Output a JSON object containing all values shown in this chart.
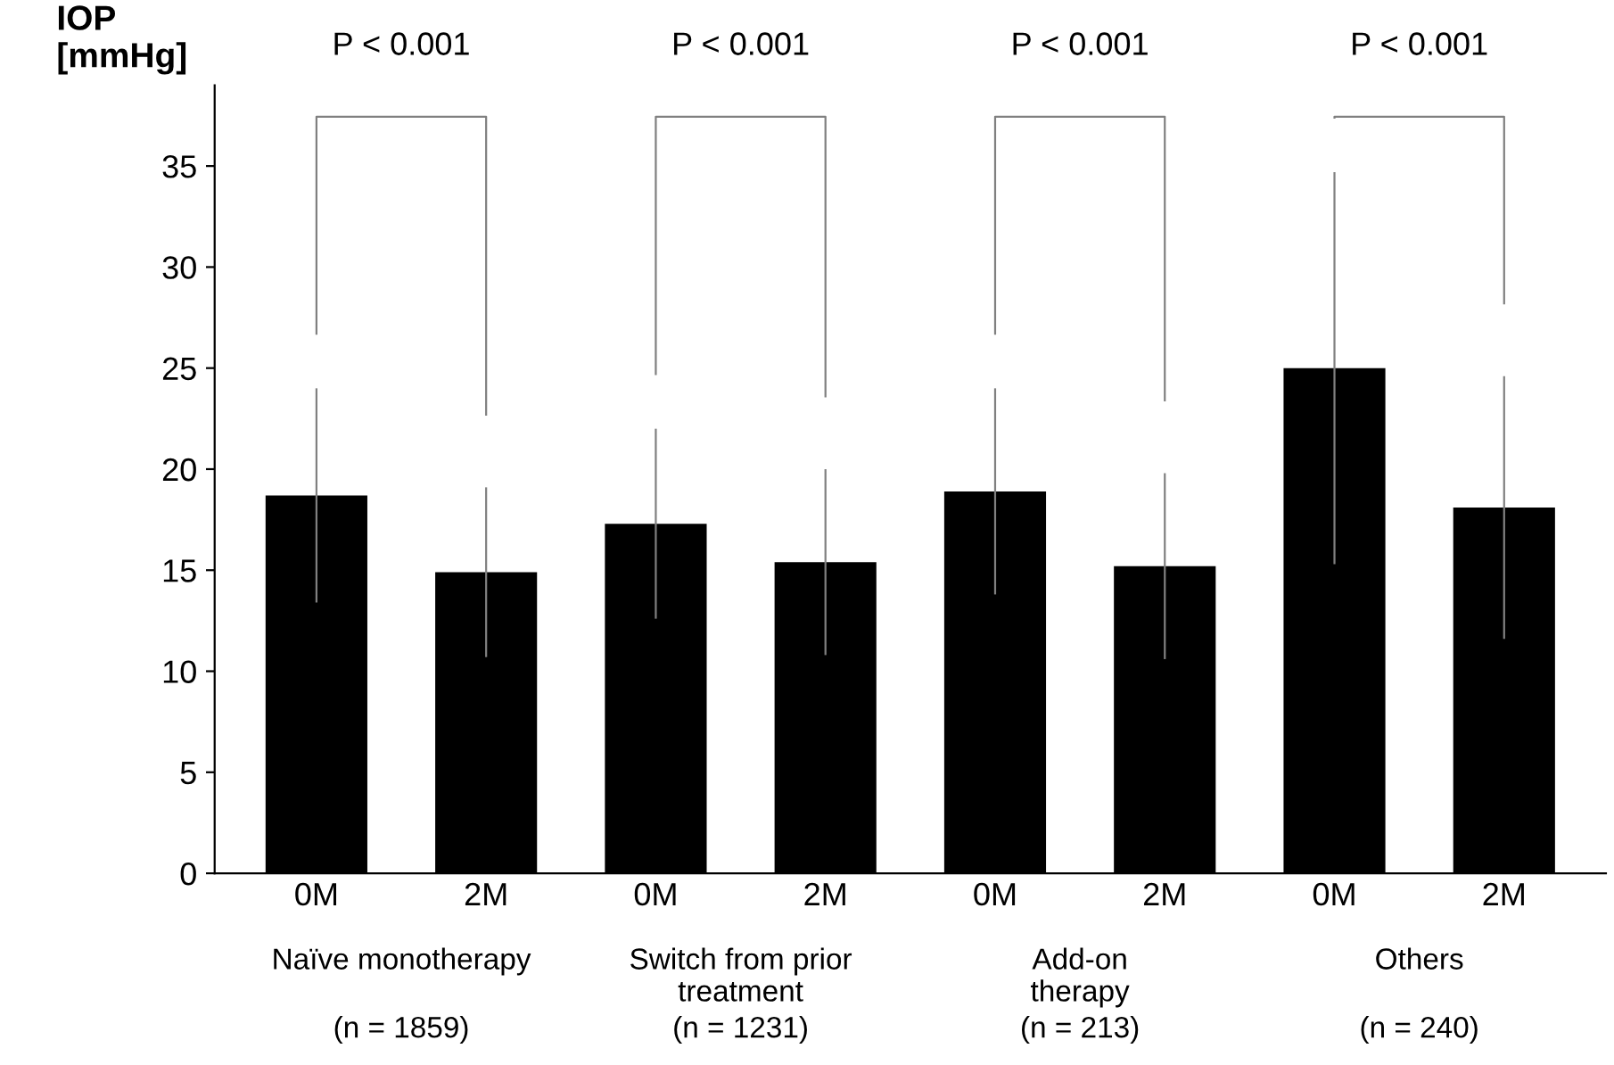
{
  "chart_data": {
    "type": "bar",
    "ylabel": "IOP\n[mmHg]",
    "categories": [
      "0M",
      "2M",
      "0M",
      "2M",
      "0M",
      "2M",
      "0M",
      "2M"
    ],
    "values": [
      18.7,
      14.9,
      17.3,
      15.4,
      18.9,
      15.2,
      25.0,
      18.1
    ],
    "errors": [
      5.3,
      4.2,
      4.7,
      4.6,
      5.1,
      4.6,
      9.7,
      6.5
    ],
    "color": "#000000",
    "ylim": [
      0,
      39
    ],
    "yticks": [
      0,
      5,
      10,
      15,
      20,
      25,
      30,
      35
    ],
    "grid": false,
    "legend": false,
    "annotations": [
      "P < 0.001",
      "P < 0.001",
      "P < 0.001",
      "P < 0.001",
      "Naïve monotherapy",
      "Switch from prior\ntreatment",
      "Add-on\ntherapy",
      "Others",
      "(n = 1859)",
      "(n = 1231)",
      "(n = 213)",
      "(n = 240)"
    ]
  }
}
